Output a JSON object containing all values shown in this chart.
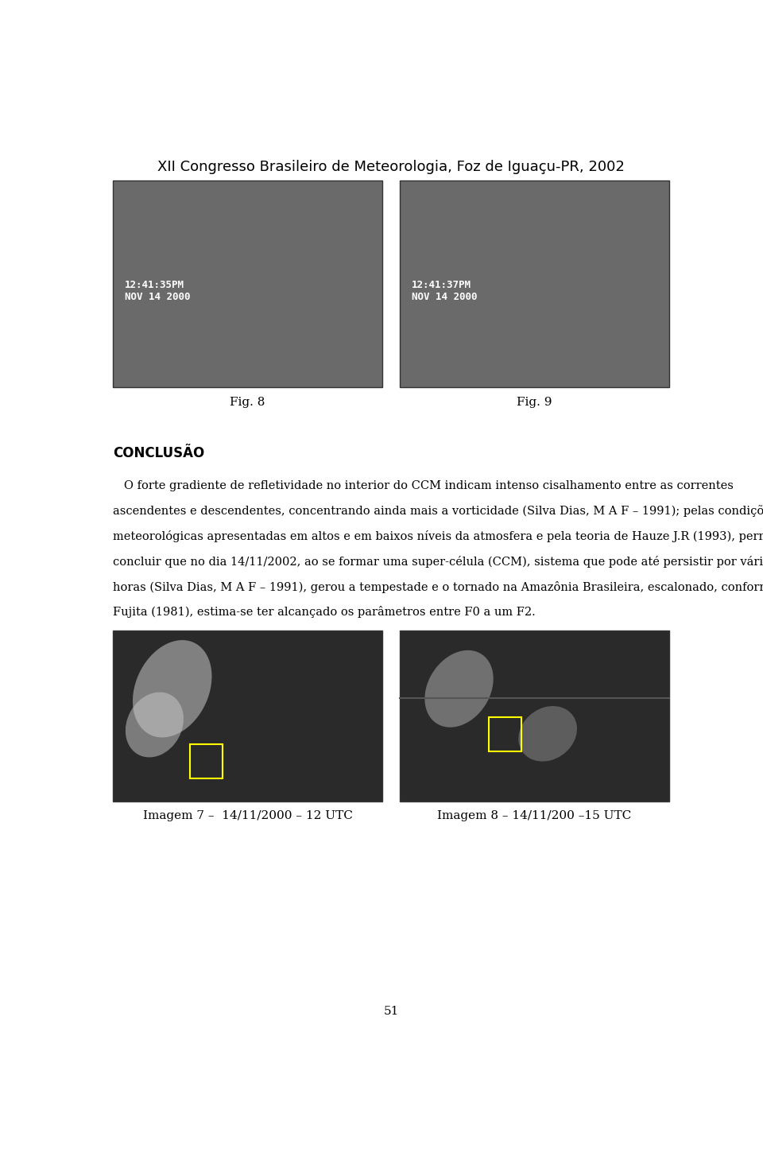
{
  "title": "XII Congresso Brasileiro de Meteorologia, Foz de Iguaçu-PR, 2002",
  "title_fontsize": 13,
  "background_color": "#ffffff",
  "page_width": 9.6,
  "page_height": 14.69,
  "fig8_label": "Fig. 8",
  "fig9_label": "Fig. 9",
  "section_title": "CONCLUSÃO",
  "paragraph_lines": [
    "   O forte gradiente de refletividade no interior do CCM indicam intenso cisalhamento entre as correntes",
    "ascendentes e descendentes, concentrando ainda mais a vorticidade (Silva Dias, M A F – 1991); pelas condições",
    "meteorológicas apresentadas em altos e em baixos níveis da atmosfera e pela teoria de Hauze J.R (1993), permitem",
    "concluir que no dia 14/11/2002, ao se formar uma super-célula (CCM), sistema que pode até persistir por várias",
    "horas (Silva Dias, M A F – 1991), gerou a tempestade e o tornado na Amazônia Brasileira, escalonado, conforme",
    "Fujita (1981), estima-se ter alcançado os parâmetros entre F0 a um F2."
  ],
  "img7_label": "Imagem 7 –  14/11/2000 – 12 UTC",
  "img8_label": "Imagem 8 – 14/11/200 –15 UTC",
  "page_number": "51",
  "text_fontsize": 10.5,
  "section_fontsize": 12,
  "label_fontsize": 11,
  "page_num_fontsize": 11
}
